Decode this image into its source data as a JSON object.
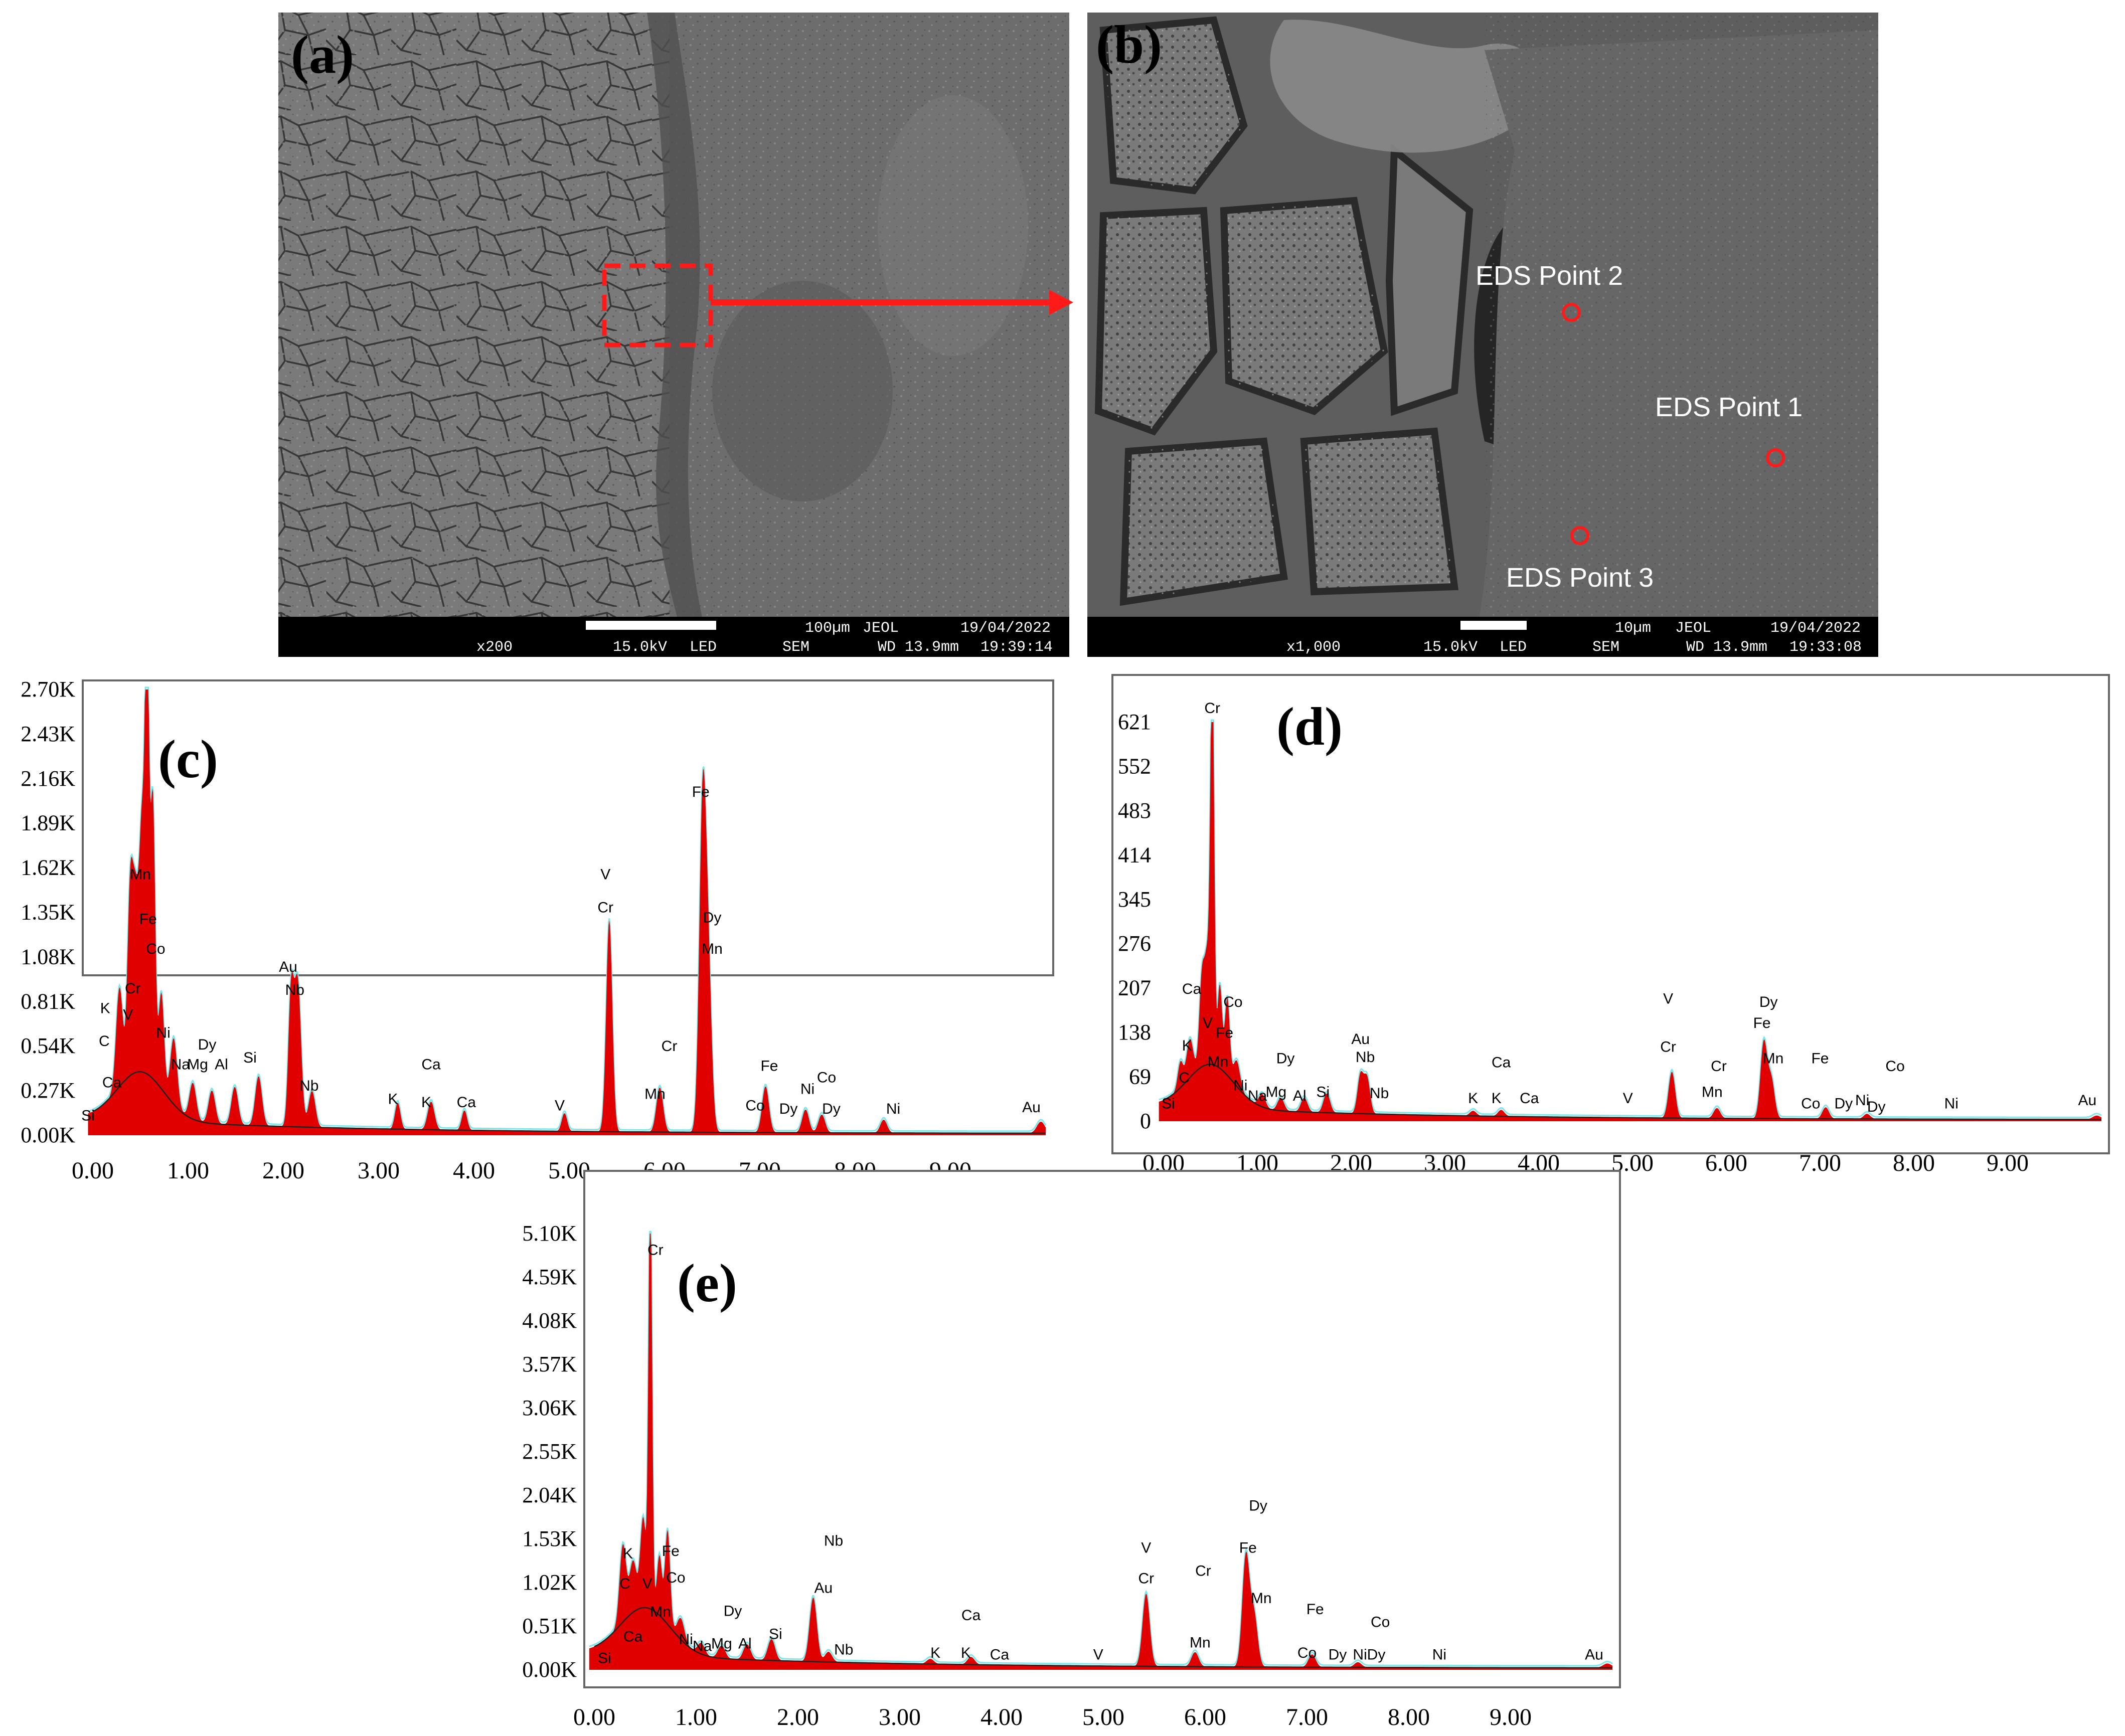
{
  "sem_panels": [
    {
      "id": "a",
      "label": "(a)",
      "bar": {
        "mag": "x200",
        "kv": "15.0kV",
        "det": "LED",
        "scale": "100µm",
        "brand": "JEOL",
        "mode": "SEM",
        "wd": "WD 13.9mm",
        "date": "19/04/2022",
        "time": "19:39:14"
      }
    },
    {
      "id": "b",
      "label": "(b)",
      "bar": {
        "mag": "x1,000",
        "kv": "15.0kV",
        "det": "LED",
        "scale": "10µm",
        "brand": "JEOL",
        "mode": "SEM",
        "wd": "WD 13.9mm",
        "date": "19/04/2022",
        "time": "19:33:08"
      }
    }
  ],
  "eds_points": [
    "EDS Point 1",
    "EDS Point 2",
    "EDS Point 3"
  ],
  "colors": {
    "spectrum": "#e00000",
    "trace": "#7fe6ea",
    "marker": "#e00000",
    "axis": "#555555"
  },
  "chart_data": [
    {
      "id": "c",
      "type": "area",
      "label": "(c)",
      "xlim": [
        0,
        10
      ],
      "ylim": [
        0,
        2700
      ],
      "xticks": [
        "0.00",
        "1.00",
        "2.00",
        "3.00",
        "4.00",
        "5.00",
        "6.00",
        "7.00",
        "8.00",
        "9.00"
      ],
      "yticks": [
        "0.00K",
        "0.27K",
        "0.54K",
        "0.81K",
        "1.08K",
        "1.35K",
        "1.62K",
        "1.89K",
        "2.16K",
        "2.43K",
        "2.70K"
      ],
      "peaks": [
        {
          "x": 0.28,
          "y": 600,
          "w": 0.05
        },
        {
          "x": 0.39,
          "y": 980,
          "w": 0.04
        },
        {
          "x": 0.45,
          "y": 1050,
          "w": 0.05
        },
        {
          "x": 0.52,
          "y": 1380,
          "w": 0.04
        },
        {
          "x": 0.57,
          "y": 2500,
          "w": 0.03
        },
        {
          "x": 0.63,
          "y": 1700,
          "w": 0.035
        },
        {
          "x": 0.72,
          "y": 580,
          "w": 0.04
        },
        {
          "x": 0.85,
          "y": 400,
          "w": 0.05
        },
        {
          "x": 1.05,
          "y": 220,
          "w": 0.05
        },
        {
          "x": 1.25,
          "y": 200,
          "w": 0.05
        },
        {
          "x": 1.49,
          "y": 230,
          "w": 0.05
        },
        {
          "x": 1.74,
          "y": 300,
          "w": 0.05
        },
        {
          "x": 2.08,
          "y": 780,
          "w": 0.04
        },
        {
          "x": 2.15,
          "y": 880,
          "w": 0.05
        },
        {
          "x": 2.3,
          "y": 220,
          "w": 0.05
        },
        {
          "x": 3.2,
          "y": 160,
          "w": 0.04
        },
        {
          "x": 3.55,
          "y": 170,
          "w": 0.05
        },
        {
          "x": 3.9,
          "y": 120,
          "w": 0.04
        },
        {
          "x": 4.95,
          "y": 110,
          "w": 0.04
        },
        {
          "x": 5.42,
          "y": 1280,
          "w": 0.045
        },
        {
          "x": 5.95,
          "y": 270,
          "w": 0.05
        },
        {
          "x": 6.4,
          "y": 1950,
          "w": 0.05
        },
        {
          "x": 6.46,
          "y": 900,
          "w": 0.05
        },
        {
          "x": 7.06,
          "y": 280,
          "w": 0.05
        },
        {
          "x": 7.48,
          "y": 140,
          "w": 0.05
        },
        {
          "x": 7.65,
          "y": 110,
          "w": 0.05
        },
        {
          "x": 8.3,
          "y": 80,
          "w": 0.05
        },
        {
          "x": 9.95,
          "y": 70,
          "w": 0.06
        }
      ],
      "labels": [
        {
          "t": "Si",
          "x": -0.05,
          "y": 90
        },
        {
          "t": "C",
          "x": 0.12,
          "y": 540
        },
        {
          "t": "Ca",
          "x": 0.2,
          "y": 290
        },
        {
          "t": "K",
          "x": 0.13,
          "y": 740
        },
        {
          "t": "V",
          "x": 0.37,
          "y": 700
        },
        {
          "t": "Cr",
          "x": 0.42,
          "y": 860
        },
        {
          "t": "Fe",
          "x": 0.58,
          "y": 1280
        },
        {
          "t": "Mn",
          "x": 0.5,
          "y": 1550
        },
        {
          "t": "Co",
          "x": 0.66,
          "y": 1100
        },
        {
          "t": "Ni",
          "x": 0.74,
          "y": 590
        },
        {
          "t": "Na",
          "x": 0.92,
          "y": 400
        },
        {
          "t": "Mg",
          "x": 1.1,
          "y": 400
        },
        {
          "t": "Al",
          "x": 1.35,
          "y": 400
        },
        {
          "t": "Dy",
          "x": 1.2,
          "y": 520
        },
        {
          "t": "Si",
          "x": 1.65,
          "y": 440
        },
        {
          "t": "Au",
          "x": 2.05,
          "y": 990
        },
        {
          "t": "Nb",
          "x": 2.12,
          "y": 850
        },
        {
          "t": "Nb",
          "x": 2.27,
          "y": 270
        },
        {
          "t": "K",
          "x": 3.15,
          "y": 190
        },
        {
          "t": "K",
          "x": 3.5,
          "y": 170
        },
        {
          "t": "Ca",
          "x": 3.55,
          "y": 400
        },
        {
          "t": "Ca",
          "x": 3.92,
          "y": 170
        },
        {
          "t": "V",
          "x": 4.9,
          "y": 150
        },
        {
          "t": "V",
          "x": 5.38,
          "y": 1550
        },
        {
          "t": "Cr",
          "x": 5.38,
          "y": 1350
        },
        {
          "t": "Mn",
          "x": 5.9,
          "y": 220
        },
        {
          "t": "Cr",
          "x": 6.05,
          "y": 510
        },
        {
          "t": "Fe",
          "x": 6.38,
          "y": 2050
        },
        {
          "t": "Dy",
          "x": 6.5,
          "y": 1290
        },
        {
          "t": "Mn",
          "x": 6.5,
          "y": 1100
        },
        {
          "t": "Co",
          "x": 6.95,
          "y": 150
        },
        {
          "t": "Fe",
          "x": 7.1,
          "y": 390
        },
        {
          "t": "Dy",
          "x": 7.3,
          "y": 130
        },
        {
          "t": "Ni",
          "x": 7.5,
          "y": 250
        },
        {
          "t": "Co",
          "x": 7.7,
          "y": 320
        },
        {
          "t": "Dy",
          "x": 7.75,
          "y": 130
        },
        {
          "t": "Ni",
          "x": 8.4,
          "y": 130
        },
        {
          "t": "Au",
          "x": 9.85,
          "y": 140
        }
      ]
    },
    {
      "id": "d",
      "type": "area",
      "label": "(d)",
      "xlim": [
        0,
        10
      ],
      "ylim": [
        0,
        621
      ],
      "xticks": [
        "0.00",
        "1.00",
        "2.00",
        "3.00",
        "4.00",
        "5.00",
        "6.00",
        "7.00",
        "8.00",
        "9.00"
      ],
      "yticks": [
        "0",
        "69",
        "138",
        "207",
        "276",
        "345",
        "414",
        "483",
        "552",
        "621"
      ],
      "peaks": [
        {
          "x": 0.18,
          "y": 40,
          "w": 0.04
        },
        {
          "x": 0.28,
          "y": 60,
          "w": 0.05
        },
        {
          "x": 0.41,
          "y": 140,
          "w": 0.04
        },
        {
          "x": 0.47,
          "y": 160,
          "w": 0.04
        },
        {
          "x": 0.52,
          "y": 620,
          "w": 0.028
        },
        {
          "x": 0.6,
          "y": 130,
          "w": 0.035
        },
        {
          "x": 0.68,
          "y": 120,
          "w": 0.035
        },
        {
          "x": 0.78,
          "y": 40,
          "w": 0.05
        },
        {
          "x": 1.05,
          "y": 20,
          "w": 0.05
        },
        {
          "x": 1.25,
          "y": 20,
          "w": 0.05
        },
        {
          "x": 1.5,
          "y": 22,
          "w": 0.05
        },
        {
          "x": 1.74,
          "y": 30,
          "w": 0.05
        },
        {
          "x": 2.1,
          "y": 60,
          "w": 0.045
        },
        {
          "x": 2.17,
          "y": 55,
          "w": 0.045
        },
        {
          "x": 3.3,
          "y": 8,
          "w": 0.05
        },
        {
          "x": 3.6,
          "y": 10,
          "w": 0.05
        },
        {
          "x": 5.42,
          "y": 72,
          "w": 0.05
        },
        {
          "x": 5.9,
          "y": 16,
          "w": 0.05
        },
        {
          "x": 6.4,
          "y": 118,
          "w": 0.05
        },
        {
          "x": 6.48,
          "y": 60,
          "w": 0.05
        },
        {
          "x": 7.06,
          "y": 18,
          "w": 0.05
        },
        {
          "x": 7.5,
          "y": 8,
          "w": 0.05
        },
        {
          "x": 9.95,
          "y": 6,
          "w": 0.06
        }
      ],
      "labels": [
        {
          "t": "Si",
          "x": 0.05,
          "y": 20
        },
        {
          "t": "C",
          "x": 0.22,
          "y": 60
        },
        {
          "t": "K",
          "x": 0.25,
          "y": 110
        },
        {
          "t": "Ca",
          "x": 0.3,
          "y": 198
        },
        {
          "t": "Cr",
          "x": 0.52,
          "y": 635
        },
        {
          "t": "V",
          "x": 0.47,
          "y": 145
        },
        {
          "t": "Fe",
          "x": 0.65,
          "y": 130
        },
        {
          "t": "Mn",
          "x": 0.58,
          "y": 85
        },
        {
          "t": "Co",
          "x": 0.74,
          "y": 178
        },
        {
          "t": "Ni",
          "x": 0.82,
          "y": 48
        },
        {
          "t": "Na",
          "x": 1.0,
          "y": 32
        },
        {
          "t": "Mg",
          "x": 1.2,
          "y": 38
        },
        {
          "t": "Al",
          "x": 1.45,
          "y": 32
        },
        {
          "t": "Dy",
          "x": 1.3,
          "y": 90
        },
        {
          "t": "Si",
          "x": 1.7,
          "y": 38
        },
        {
          "t": "Au",
          "x": 2.1,
          "y": 120
        },
        {
          "t": "Nb",
          "x": 2.15,
          "y": 92
        },
        {
          "t": "Nb",
          "x": 2.3,
          "y": 36
        },
        {
          "t": "K",
          "x": 3.3,
          "y": 28
        },
        {
          "t": "K",
          "x": 3.55,
          "y": 28
        },
        {
          "t": "Ca",
          "x": 3.6,
          "y": 84
        },
        {
          "t": "Ca",
          "x": 3.9,
          "y": 28
        },
        {
          "t": "V",
          "x": 4.95,
          "y": 28
        },
        {
          "t": "V",
          "x": 5.38,
          "y": 183
        },
        {
          "t": "Cr",
          "x": 5.38,
          "y": 108
        },
        {
          "t": "Cr",
          "x": 5.92,
          "y": 78
        },
        {
          "t": "Mn",
          "x": 5.85,
          "y": 38
        },
        {
          "t": "Dy",
          "x": 6.45,
          "y": 178
        },
        {
          "t": "Fe",
          "x": 6.38,
          "y": 145
        },
        {
          "t": "Mn",
          "x": 6.5,
          "y": 90
        },
        {
          "t": "Fe",
          "x": 7.0,
          "y": 90
        },
        {
          "t": "Co",
          "x": 6.9,
          "y": 20
        },
        {
          "t": "Dy",
          "x": 7.25,
          "y": 20
        },
        {
          "t": "Ni",
          "x": 7.45,
          "y": 25
        },
        {
          "t": "Dy",
          "x": 7.6,
          "y": 15
        },
        {
          "t": "Co",
          "x": 7.8,
          "y": 78
        },
        {
          "t": "Ni",
          "x": 8.4,
          "y": 20
        },
        {
          "t": "Au",
          "x": 9.85,
          "y": 25
        }
      ]
    },
    {
      "id": "e",
      "type": "area",
      "label": "(e)",
      "xlim": [
        0,
        10
      ],
      "ylim": [
        0,
        5100
      ],
      "xticks": [
        "0.00",
        "1.00",
        "2.00",
        "3.00",
        "4.00",
        "5.00",
        "6.00",
        "7.00",
        "8.00",
        "9.00"
      ],
      "yticks": [
        "0.00K",
        "0.51K",
        "1.02K",
        "1.53K",
        "2.04K",
        "2.55K",
        "3.06K",
        "3.57K",
        "4.08K",
        "4.59K",
        "5.10K"
      ],
      "peaks": [
        {
          "x": 0.28,
          "y": 900,
          "w": 0.045
        },
        {
          "x": 0.38,
          "y": 600,
          "w": 0.05
        },
        {
          "x": 0.48,
          "y": 1050,
          "w": 0.04
        },
        {
          "x": 0.55,
          "y": 4950,
          "w": 0.025
        },
        {
          "x": 0.64,
          "y": 700,
          "w": 0.035
        },
        {
          "x": 0.72,
          "y": 1100,
          "w": 0.035
        },
        {
          "x": 0.85,
          "y": 250,
          "w": 0.05
        },
        {
          "x": 1.05,
          "y": 130,
          "w": 0.05
        },
        {
          "x": 1.25,
          "y": 150,
          "w": 0.05
        },
        {
          "x": 1.5,
          "y": 180,
          "w": 0.05
        },
        {
          "x": 1.74,
          "y": 250,
          "w": 0.05
        },
        {
          "x": 2.15,
          "y": 750,
          "w": 0.05
        },
        {
          "x": 2.3,
          "y": 120,
          "w": 0.05
        },
        {
          "x": 3.3,
          "y": 60,
          "w": 0.05
        },
        {
          "x": 3.7,
          "y": 90,
          "w": 0.05
        },
        {
          "x": 5.42,
          "y": 850,
          "w": 0.05
        },
        {
          "x": 5.9,
          "y": 170,
          "w": 0.05
        },
        {
          "x": 6.4,
          "y": 1300,
          "w": 0.05
        },
        {
          "x": 6.48,
          "y": 600,
          "w": 0.05
        },
        {
          "x": 7.05,
          "y": 150,
          "w": 0.05
        },
        {
          "x": 7.5,
          "y": 60,
          "w": 0.05
        },
        {
          "x": 9.95,
          "y": 50,
          "w": 0.06
        }
      ],
      "labels": [
        {
          "t": "Si",
          "x": 0.1,
          "y": 80
        },
        {
          "t": "C",
          "x": 0.3,
          "y": 950
        },
        {
          "t": "K",
          "x": 0.33,
          "y": 1300
        },
        {
          "t": "Ca",
          "x": 0.38,
          "y": 330
        },
        {
          "t": "V",
          "x": 0.52,
          "y": 950
        },
        {
          "t": "Cr",
          "x": 0.6,
          "y": 4850
        },
        {
          "t": "Fe",
          "x": 0.75,
          "y": 1330
        },
        {
          "t": "Mn",
          "x": 0.65,
          "y": 620
        },
        {
          "t": "Co",
          "x": 0.8,
          "y": 1020
        },
        {
          "t": "Ni",
          "x": 0.9,
          "y": 300
        },
        {
          "t": "Na",
          "x": 1.06,
          "y": 220
        },
        {
          "t": "Mg",
          "x": 1.25,
          "y": 250
        },
        {
          "t": "Al",
          "x": 1.48,
          "y": 250
        },
        {
          "t": "Dy",
          "x": 1.36,
          "y": 630
        },
        {
          "t": "Si",
          "x": 1.78,
          "y": 360
        },
        {
          "t": "Nb",
          "x": 2.35,
          "y": 1450
        },
        {
          "t": "Au",
          "x": 2.25,
          "y": 900
        },
        {
          "t": "Nb",
          "x": 2.45,
          "y": 180
        },
        {
          "t": "K",
          "x": 3.35,
          "y": 140
        },
        {
          "t": "K",
          "x": 3.65,
          "y": 140
        },
        {
          "t": "Ca",
          "x": 3.7,
          "y": 580
        },
        {
          "t": "Ca",
          "x": 3.98,
          "y": 120
        },
        {
          "t": "V",
          "x": 4.95,
          "y": 120
        },
        {
          "t": "V",
          "x": 5.42,
          "y": 1370
        },
        {
          "t": "Cr",
          "x": 5.42,
          "y": 1010
        },
        {
          "t": "Cr",
          "x": 5.98,
          "y": 1100
        },
        {
          "t": "Mn",
          "x": 5.95,
          "y": 260
        },
        {
          "t": "Dy",
          "x": 6.52,
          "y": 1860
        },
        {
          "t": "Fe",
          "x": 6.42,
          "y": 1370
        },
        {
          "t": "Mn",
          "x": 6.55,
          "y": 780
        },
        {
          "t": "Fe",
          "x": 7.08,
          "y": 650
        },
        {
          "t": "Co",
          "x": 7.0,
          "y": 140
        },
        {
          "t": "Dy",
          "x": 7.3,
          "y": 120
        },
        {
          "t": "Ni",
          "x": 7.52,
          "y": 120
        },
        {
          "t": "Dy",
          "x": 7.68,
          "y": 120
        },
        {
          "t": "Co",
          "x": 7.72,
          "y": 500
        },
        {
          "t": "Ni",
          "x": 8.3,
          "y": 120
        },
        {
          "t": "Au",
          "x": 9.82,
          "y": 120
        }
      ]
    }
  ]
}
